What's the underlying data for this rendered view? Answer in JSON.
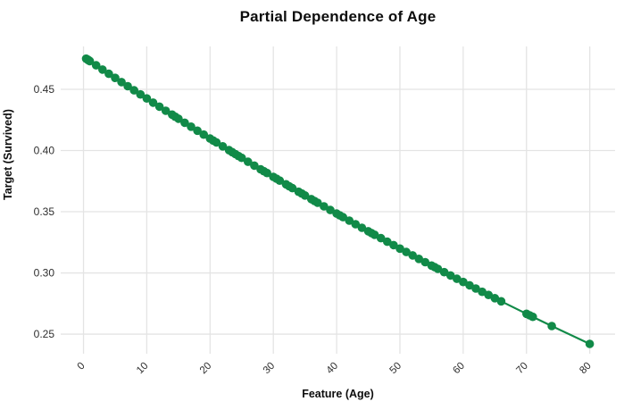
{
  "figure": {
    "background": "#ffffff"
  },
  "chart_data": {
    "type": "line",
    "title": "Partial Dependence of Age",
    "xlabel": "Feature (Age)",
    "ylabel": "Target (Survived)",
    "legend": "none",
    "grid": true,
    "xlim": [
      -3.6,
      84
    ],
    "ylim": [
      0.234,
      0.485
    ],
    "xticks": {
      "values": [
        0,
        10,
        20,
        30,
        40,
        50,
        60,
        70,
        80
      ],
      "labels": [
        "0",
        "10",
        "20",
        "30",
        "40",
        "50",
        "60",
        "70",
        "80"
      ],
      "rotation_deg": -45
    },
    "yticks": {
      "values": [
        0.25,
        0.3,
        0.35,
        0.4,
        0.45
      ],
      "labels": [
        "0.25",
        "0.30",
        "0.35",
        "0.40",
        "0.45"
      ]
    },
    "series": [
      {
        "name": "partial-dependence-of-age",
        "marker": "circle",
        "x": [
          0.42,
          0.67,
          0.75,
          0.83,
          0.92,
          1,
          2,
          3,
          4,
          5,
          6,
          7,
          8,
          9,
          10,
          11,
          12,
          13,
          14,
          14.5,
          15,
          16,
          17,
          18,
          19,
          20,
          20.5,
          21,
          22,
          23,
          23.5,
          24,
          24.5,
          25,
          26,
          27,
          28,
          28.5,
          29,
          30,
          30.5,
          31,
          32,
          32.5,
          33,
          34,
          34.5,
          35,
          36,
          36.5,
          37,
          38,
          39,
          40,
          40.5,
          41,
          42,
          43,
          44,
          45,
          45.5,
          46,
          47,
          48,
          49,
          50,
          51,
          52,
          53,
          54,
          55,
          55.5,
          56,
          57,
          58,
          59,
          60,
          61,
          62,
          63,
          64,
          65,
          66,
          70,
          70.5,
          71,
          74,
          80
        ],
        "y": [
          0.475,
          0.4742,
          0.4739,
          0.4736,
          0.4733,
          0.473,
          0.4696,
          0.4661,
          0.4627,
          0.4593,
          0.4559,
          0.4525,
          0.4492,
          0.4458,
          0.4425,
          0.4391,
          0.4358,
          0.4325,
          0.4293,
          0.4276,
          0.426,
          0.4227,
          0.4195,
          0.4162,
          0.413,
          0.4098,
          0.4082,
          0.4066,
          0.4034,
          0.4003,
          0.3987,
          0.3971,
          0.3955,
          0.394,
          0.3908,
          0.3877,
          0.3846,
          0.3831,
          0.3816,
          0.3785,
          0.377,
          0.3754,
          0.3724,
          0.3708,
          0.3693,
          0.3663,
          0.3648,
          0.3633,
          0.3603,
          0.3588,
          0.3573,
          0.3544,
          0.3514,
          0.3485,
          0.347,
          0.3456,
          0.3427,
          0.3398,
          0.3369,
          0.334,
          0.3326,
          0.3312,
          0.3284,
          0.3255,
          0.3227,
          0.3199,
          0.3171,
          0.3143,
          0.3115,
          0.3088,
          0.306,
          0.3047,
          0.3033,
          0.3006,
          0.2979,
          0.2952,
          0.2926,
          0.2899,
          0.2873,
          0.2846,
          0.282,
          0.2794,
          0.2768,
          0.2666,
          0.2654,
          0.2641,
          0.2566,
          0.242
        ]
      }
    ],
    "colors": {
      "series": "#118a48",
      "grid": "#e4e4e4",
      "tick_label": "#2e2e2e",
      "title": "#0d0d0d",
      "axis_label": "#0d0d0d",
      "background": "#ffffff"
    },
    "style": {
      "marker_radius": 4.8,
      "line_width": 2.2,
      "tick_font_size": 12,
      "x_tick_font_size": 11.5
    }
  }
}
